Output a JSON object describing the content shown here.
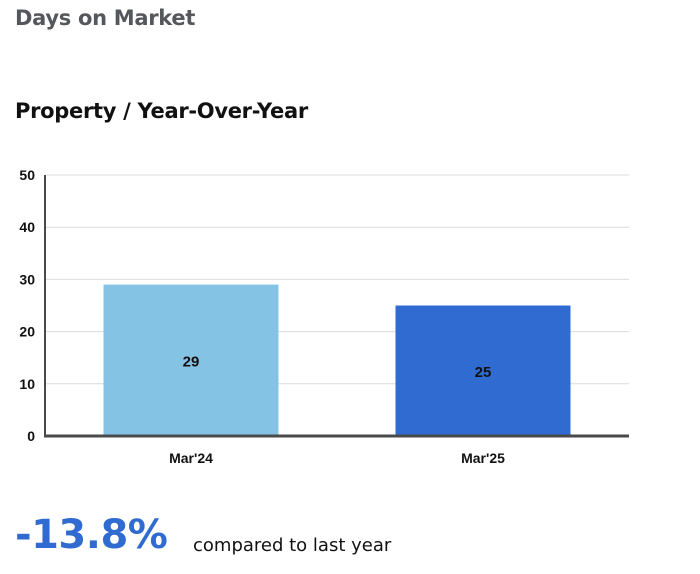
{
  "header": {
    "title": "Days on Market"
  },
  "chart_data": {
    "type": "bar",
    "title": "Property / Year-Over-Year",
    "categories": [
      "Mar'24",
      "Mar'25"
    ],
    "values": [
      29,
      25
    ],
    "bar_colors": [
      "#85c3e5",
      "#2f6bd0"
    ],
    "data_labels": [
      "29",
      "25"
    ],
    "ylim": [
      0,
      50
    ],
    "yticks": [
      0,
      10,
      20,
      30,
      40,
      50
    ],
    "ytick_labels": [
      "0",
      "10",
      "20",
      "30",
      "40",
      "50"
    ],
    "grid": true,
    "xlabel": "",
    "ylabel": ""
  },
  "summary": {
    "change": "-13.8%",
    "caption": "compared to last year",
    "change_color": "#2f6bd0"
  }
}
